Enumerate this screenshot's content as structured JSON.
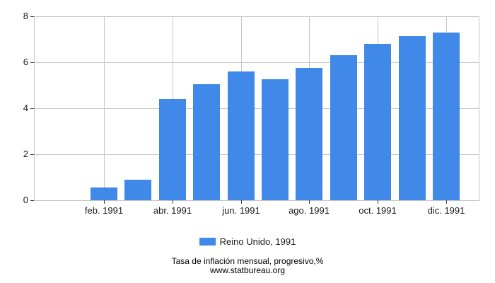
{
  "legend": {
    "label": "Reino Unido, 1991"
  },
  "footer": {
    "title": "Tasa de inflación mensual, progresivo,%",
    "source": "www.statbureau.org"
  },
  "chart_data": {
    "type": "bar",
    "title": "",
    "xlabel": "",
    "ylabel": "",
    "categories": [
      "ene. 1991",
      "feb. 1991",
      "mar. 1991",
      "abr. 1991",
      "may. 1991",
      "jun. 1991",
      "jul. 1991",
      "ago. 1991",
      "sep. 1991",
      "oct. 1991",
      "nov. 1991",
      "dic. 1991"
    ],
    "series": [
      {
        "name": "Reino Unido, 1991",
        "values": [
          0,
          0.55,
          0.9,
          4.4,
          5.05,
          5.6,
          5.25,
          5.75,
          6.3,
          6.8,
          7.15,
          7.3
        ]
      }
    ],
    "x_tick_labels": [
      "feb. 1991",
      "abr. 1991",
      "jun. 1991",
      "ago. 1991",
      "oct. 1991",
      "dic. 1991"
    ],
    "y_ticks": [
      0,
      2,
      4,
      6,
      8
    ],
    "ylim": [
      0,
      8
    ],
    "grid": true,
    "legend_position": "bottom",
    "colors": {
      "bar": "#4189e8",
      "grid": "#c6c6c6",
      "tick": "#3c3c3c",
      "text": "#1a1a1a"
    }
  }
}
